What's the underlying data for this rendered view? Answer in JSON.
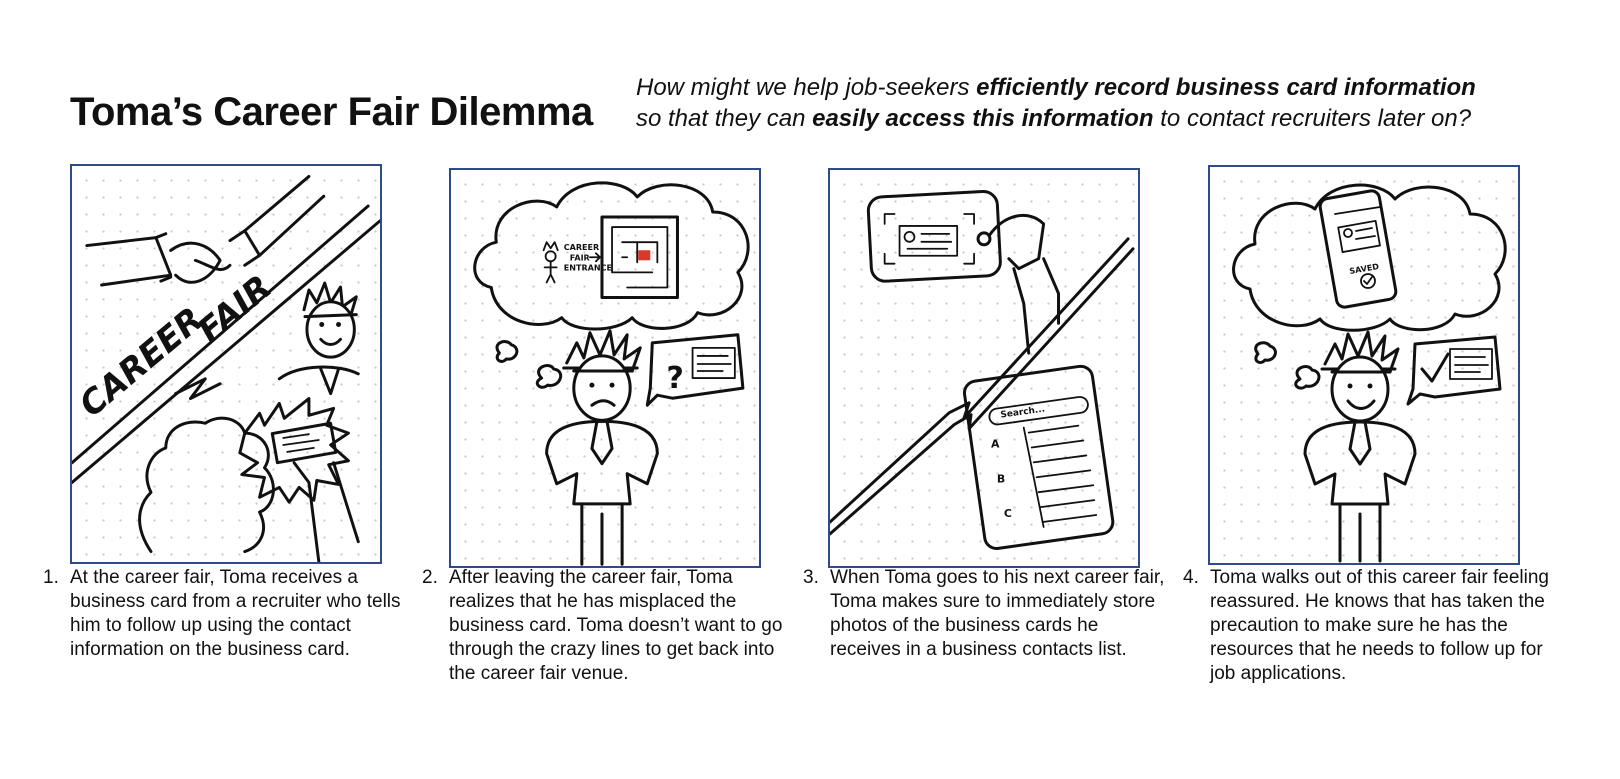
{
  "title": "Toma’s Career Fair Dilemma",
  "hmw": {
    "line1_pre": "How might we help job-seekers ",
    "line1_bold": "efficiently record business card information",
    "line2_pre": "so that they can ",
    "line2_bold": "easily access this information",
    "line2_post": " to contact recruiters later on?"
  },
  "panels": [
    {
      "number": "1.",
      "caption": "At the career fair, Toma receives a business card from a recruiter who tells him to follow up using the contact information on the business card.",
      "sketch_text": [
        "CAREER",
        "FAIR"
      ]
    },
    {
      "number": "2.",
      "caption": "After leaving the career fair, Toma realizes that he has misplaced the business card. Toma doesn’t want to go through the crazy lines to get back into the career fair venue.",
      "sketch_text": [
        "CAREER",
        "FAIR",
        "ENTRANCE",
        "?"
      ]
    },
    {
      "number": "3.",
      "caption": "When Toma goes to his next career fair, Toma makes sure to immediately store photos of the business cards he receives in a business contacts list.",
      "sketch_text": [
        "Search...",
        "A",
        "B",
        "C"
      ]
    },
    {
      "number": "4.",
      "caption": "Toma walks out of this career fair feeling reassured. He knows that has taken the precaution to make sure he has the resources that he needs to follow up for job applications.",
      "sketch_text": [
        "SAVED"
      ]
    }
  ],
  "colors": {
    "panel_border": "#2d4a8a",
    "ink": "#111111",
    "dots": "#c9c9c9",
    "maze_mark": "#d83a2a"
  }
}
